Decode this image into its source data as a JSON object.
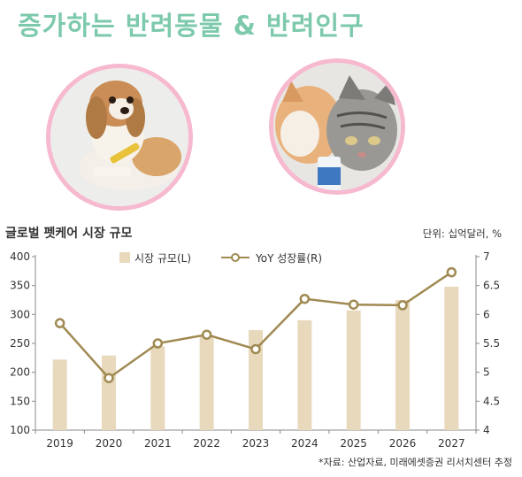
{
  "banner": {
    "title": "증가하는 반려동물 & 반려인구",
    "color": "#7cc9ab"
  },
  "photos": {
    "left": {
      "name": "dog-photo",
      "frame_color": "#f6b9cf"
    },
    "right": {
      "name": "cats-photo",
      "frame_color": "#f6b9cf"
    }
  },
  "chart_data": {
    "type": "bar",
    "title": "글로벌 펫케어 시장 규모",
    "unit_label": "단위: 십억달러, %",
    "source": "*자료: 산업자료, 미래에셋증권 리서치센터 추정",
    "categories": [
      "2019",
      "2020",
      "2021",
      "2022",
      "2023",
      "2024",
      "2025",
      "2026",
      "2027"
    ],
    "series": [
      {
        "name": "시장 규모(L)",
        "type": "bar",
        "axis": "left",
        "color": "#e8d9bd",
        "values": [
          222,
          229,
          245,
          262,
          273,
          290,
          307,
          325,
          348
        ]
      },
      {
        "name": "YoY 성장률(R)",
        "type": "line",
        "axis": "right",
        "color": "#a08a52",
        "values": [
          5.85,
          4.9,
          5.5,
          5.65,
          5.4,
          6.27,
          6.17,
          6.16,
          6.73
        ]
      }
    ],
    "left_axis": {
      "ylim": [
        100,
        400
      ],
      "ticks": [
        "400",
        "350",
        "300",
        "250",
        "200",
        "150",
        "100"
      ]
    },
    "right_axis": {
      "ylim": [
        4,
        7
      ],
      "ticks": [
        "7",
        "6.5",
        "6",
        "5.5",
        "5",
        "4.5",
        "4"
      ]
    },
    "grid": false,
    "legend_position": "top"
  }
}
